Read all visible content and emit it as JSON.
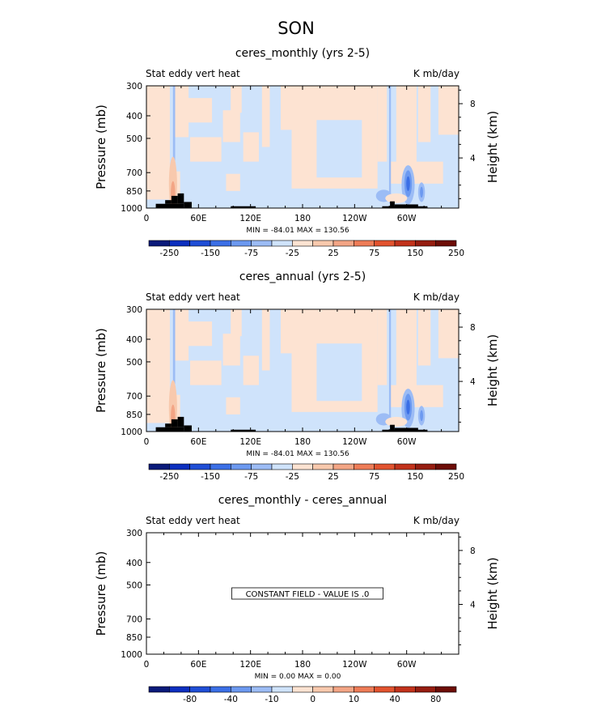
{
  "figure": {
    "title": "SON"
  },
  "colors": {
    "axis": "#000000",
    "land": "#000000",
    "neg_levels": [
      "#0a1a7a",
      "#0c2fbf",
      "#1f4ed6",
      "#3b6fe6",
      "#6c99f0",
      "#9cbcf5",
      "#cfe3fb"
    ],
    "pos_levels": [
      "#fde3d2",
      "#f8c9ad",
      "#f3a585",
      "#ee7c57",
      "#e2532f",
      "#c2321b",
      "#961d10",
      "#6d0d06"
    ]
  },
  "chart_data": [
    {
      "type": "heatmap",
      "title": "ceres_monthly (yrs 2-5)",
      "left_label": "Stat eddy vert heat",
      "right_label": "K mb/day",
      "ylabel": "Pressure (mb)",
      "ylabel_right": "Height (km)",
      "xticks": [
        "0",
        "60E",
        "120E",
        "180",
        "120W",
        "60W"
      ],
      "yticks": [
        "300",
        "400",
        "500",
        "700",
        "850",
        "1000"
      ],
      "yticks_right": [
        "8",
        "4"
      ],
      "minmax": "MIN = -84.01   MAX = 130.56",
      "colorbar": [
        "-250",
        "-150",
        "-75",
        "-25",
        "25",
        "75",
        "150",
        "250"
      ],
      "field": "nonzero"
    },
    {
      "type": "heatmap",
      "title": "ceres_annual (yrs 2-5)",
      "left_label": "Stat eddy vert heat",
      "right_label": "K mb/day",
      "ylabel": "Pressure (mb)",
      "ylabel_right": "Height (km)",
      "xticks": [
        "0",
        "60E",
        "120E",
        "180",
        "120W",
        "60W"
      ],
      "yticks": [
        "300",
        "400",
        "500",
        "700",
        "850",
        "1000"
      ],
      "yticks_right": [
        "8",
        "4"
      ],
      "minmax": "MIN = -84.01   MAX = 130.56",
      "colorbar": [
        "-250",
        "-150",
        "-75",
        "-25",
        "25",
        "75",
        "150",
        "250"
      ],
      "field": "nonzero"
    },
    {
      "type": "heatmap",
      "title": "ceres_monthly - ceres_annual",
      "left_label": "Stat eddy vert heat",
      "right_label": "K mb/day",
      "ylabel": "Pressure (mb)",
      "ylabel_right": "Height (km)",
      "xticks": [
        "0",
        "60E",
        "120E",
        "180",
        "120W",
        "60W"
      ],
      "yticks": [
        "300",
        "400",
        "500",
        "700",
        "850",
        "1000"
      ],
      "yticks_right": [
        "8",
        "4"
      ],
      "minmax": "MIN =    0.00   MAX =    0.00",
      "colorbar": [
        "-80",
        "-40",
        "-10",
        "0",
        "10",
        "40",
        "80"
      ],
      "field": "constant",
      "constant_label": "CONSTANT FIELD - VALUE IS .0"
    }
  ]
}
